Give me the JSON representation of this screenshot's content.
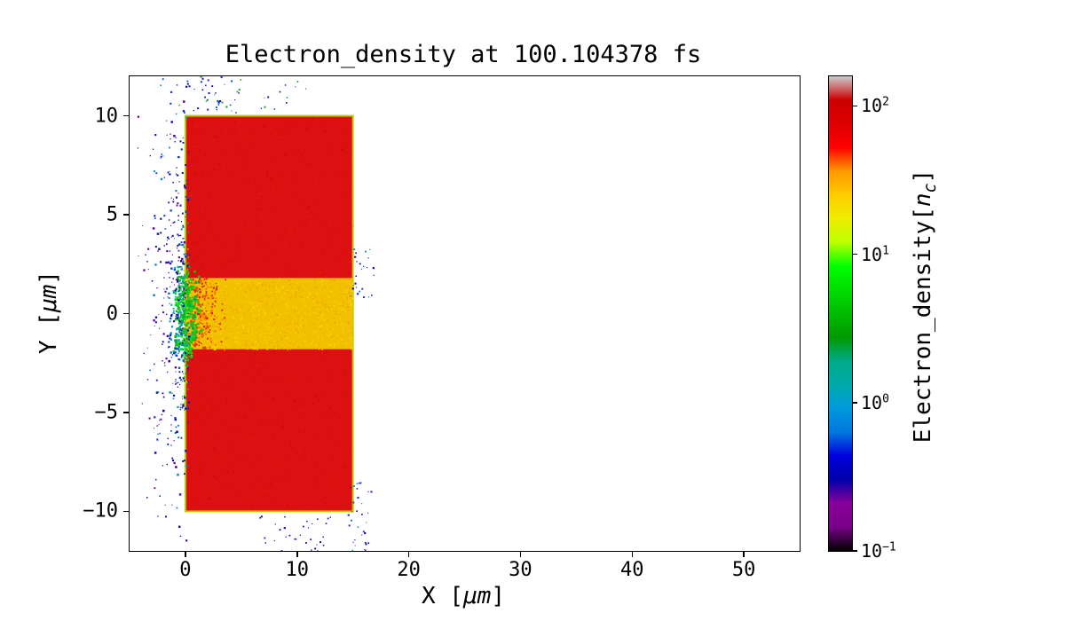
{
  "figure": {
    "title": "Electron_density at 100.104378 fs"
  },
  "labels": {
    "xlabel_pre": "X [",
    "xlabel_unit": "μm",
    "xlabel_post": "]",
    "ylabel_pre": "Y [",
    "ylabel_unit": "μm",
    "ylabel_post": "]",
    "cbar_pre": "Electron_density[",
    "cbar_var": "n",
    "cbar_sub": "c",
    "cbar_post": "]"
  },
  "chart_data": {
    "type": "heatmap",
    "title": "Electron_density at 100.104378 fs",
    "time_fs": 100.104378,
    "xlabel": "X [μm]",
    "ylabel": "Y [μm]",
    "xlim": [
      -5,
      55
    ],
    "ylim": [
      -12,
      12
    ],
    "xticks": [
      0,
      10,
      20,
      30,
      40,
      50
    ],
    "yticks": [
      10,
      5,
      0,
      -5,
      -10
    ],
    "grid": false,
    "background_color": "#ffffff",
    "colorbar": {
      "label": "Electron_density[n_c]",
      "scale": "log",
      "tick_exponents": [
        2,
        1,
        0,
        -1
      ],
      "exp_range": [
        -1,
        2.2
      ],
      "colormap": "nipy_spectral",
      "gradient": [
        {
          "pos": 0.0,
          "color": "#000000"
        },
        {
          "pos": 0.05,
          "color": "#770088"
        },
        {
          "pos": 0.1,
          "color": "#880099"
        },
        {
          "pos": 0.15,
          "color": "#0000aa"
        },
        {
          "pos": 0.2,
          "color": "#0000dd"
        },
        {
          "pos": 0.25,
          "color": "#0077dd"
        },
        {
          "pos": 0.3,
          "color": "#0099dd"
        },
        {
          "pos": 0.35,
          "color": "#00aaaa"
        },
        {
          "pos": 0.4,
          "color": "#00aa88"
        },
        {
          "pos": 0.45,
          "color": "#009900"
        },
        {
          "pos": 0.5,
          "color": "#00bb00"
        },
        {
          "pos": 0.55,
          "color": "#00dd00"
        },
        {
          "pos": 0.6,
          "color": "#00ff00"
        },
        {
          "pos": 0.65,
          "color": "#bbff00"
        },
        {
          "pos": 0.7,
          "color": "#eeee00"
        },
        {
          "pos": 0.75,
          "color": "#ffcc00"
        },
        {
          "pos": 0.8,
          "color": "#ff9900"
        },
        {
          "pos": 0.85,
          "color": "#ff0000"
        },
        {
          "pos": 0.9,
          "color": "#dd0000"
        },
        {
          "pos": 0.95,
          "color": "#cc0000"
        },
        {
          "pos": 1.0,
          "color": "#cccccc"
        }
      ]
    },
    "regions": [
      {
        "name": "target-slab",
        "x": [
          0,
          15
        ],
        "y": [
          -10,
          10
        ],
        "density_nc": 100,
        "fill": "#dc1010",
        "texture_colors": [
          "#d40f0f",
          "#e81818",
          "#cc0808"
        ],
        "texture_count": 900
      },
      {
        "name": "plasma-channel",
        "x": [
          0,
          15
        ],
        "y": [
          -1.8,
          1.8
        ],
        "density_nc": 25,
        "fill": "#f2c000",
        "texture_colors": [
          "#eebb00",
          "#ffd300",
          "#e8a800",
          "#f5c800"
        ],
        "texture_count": 1400
      }
    ],
    "slab_outline": {
      "color": "#b4cc00",
      "width": 2
    },
    "scatter_seed": 7,
    "scatter_groups": [
      {
        "name": "channel-heating-front",
        "count": 260,
        "x": {
          "type": "gauss",
          "mean": 1.3,
          "sd": 0.9,
          "min": 0.05,
          "max": 3.8
        },
        "y": {
          "type": "uniform",
          "min": -1.75,
          "max": 1.75
        },
        "colors": [
          "#e83200",
          "#ff5a00",
          "#d81c00",
          "#ff8c00"
        ],
        "size": [
          1.2,
          2.4
        ]
      },
      {
        "name": "blowoff-cyan-fringe",
        "count": 130,
        "x": {
          "type": "gauss",
          "mean": -0.35,
          "sd": 0.55,
          "min": -1.5,
          "max": 0.6
        },
        "y": {
          "type": "gauss",
          "mean": 0,
          "sd": 1.7,
          "min": -2.6,
          "max": 2.6
        },
        "colors": [
          "#00a0b4",
          "#0090d8",
          "#00b890"
        ],
        "size": [
          1.5,
          2.6
        ]
      },
      {
        "name": "blowoff-green-core",
        "count": 270,
        "x": {
          "type": "gauss",
          "mean": 0.15,
          "sd": 0.55,
          "min": -1.0,
          "max": 1.5
        },
        "y": {
          "type": "gauss",
          "mean": 0,
          "sd": 1.3,
          "min": -2.4,
          "max": 2.4
        },
        "colors": [
          "#00cc00",
          "#10e020",
          "#28b428",
          "#00aa50"
        ],
        "size": [
          1.8,
          3.4
        ]
      },
      {
        "name": "left-ejecta-plume",
        "count": 380,
        "x": {
          "type": "gauss",
          "mean": -0.7,
          "sd": 1.3,
          "min": -4.8,
          "max": 0.4
        },
        "y": {
          "type": "gauss",
          "mean": 0.5,
          "sd": 5.5,
          "min": -12,
          "max": 12
        },
        "colors": [
          "#0a0ab4",
          "#2828d0",
          "#0a50c8",
          "#0888c8",
          "#5a00a0",
          "#141484"
        ],
        "size": [
          1.0,
          2.6
        ]
      },
      {
        "name": "top-edge-spray",
        "count": 55,
        "x": {
          "type": "gauss",
          "mean": 1.5,
          "sd": 4.0,
          "min": -1.0,
          "max": 14.5
        },
        "y": {
          "type": "uniform",
          "min": 10.15,
          "max": 12
        },
        "colors": [
          "#0a0ab4",
          "#2828d0",
          "#0a50c8",
          "#20a020"
        ],
        "size": [
          1.0,
          2.2
        ]
      },
      {
        "name": "right-edge-top-spray",
        "count": 26,
        "x": {
          "type": "uniform",
          "min": 14.7,
          "max": 16.9
        },
        "y": {
          "type": "uniform",
          "min": 0.8,
          "max": 3.4
        },
        "colors": [
          "#0a0ab4",
          "#2828d0",
          "#0888c8"
        ],
        "size": [
          1.0,
          2.2
        ]
      },
      {
        "name": "right-edge-bottom-spray",
        "count": 34,
        "x": {
          "type": "uniform",
          "min": 14.6,
          "max": 16.8
        },
        "y": {
          "type": "uniform",
          "min": -12,
          "max": -8.4
        },
        "colors": [
          "#0a0ab4",
          "#2828d0",
          "#0888c8"
        ],
        "size": [
          1.0,
          2.2
        ]
      },
      {
        "name": "bottom-edge-spray",
        "count": 32,
        "x": {
          "type": "uniform",
          "min": 6.5,
          "max": 13
        },
        "y": {
          "type": "uniform",
          "min": -12,
          "max": -10.2
        },
        "colors": [
          "#0a0ab4",
          "#2828d0",
          "#141484"
        ],
        "size": [
          1.0,
          2.2
        ]
      },
      {
        "name": "front-surface-green-edge",
        "count": 46,
        "x": {
          "type": "uniform",
          "min": -0.15,
          "max": 0.3
        },
        "y": {
          "type": "uniform",
          "min": -5,
          "max": 5
        },
        "colors": [
          "#3ccc00",
          "#c8e000",
          "#00b400"
        ],
        "size": [
          1.4,
          2.0
        ]
      }
    ]
  }
}
